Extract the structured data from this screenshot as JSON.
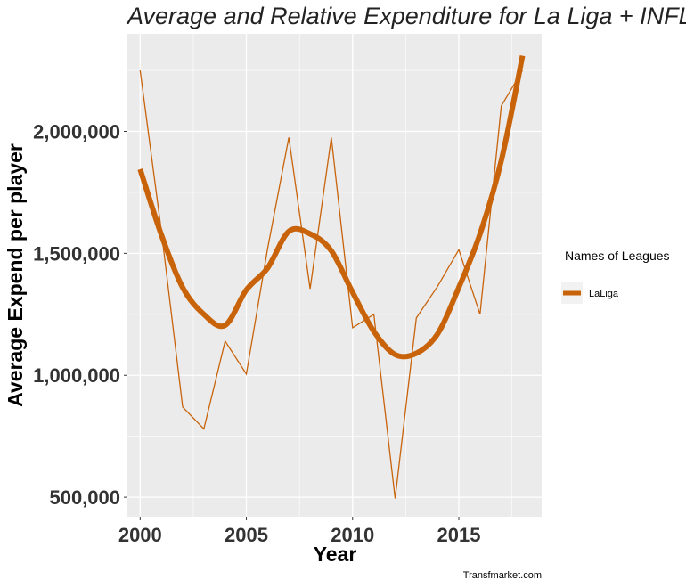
{
  "chart_data": {
    "type": "line",
    "title": "Average and Relative  Expenditure for La Liga + INFL",
    "xlabel": "Year",
    "ylabel": "Average Expend  per player",
    "caption": "Transfmarket.com",
    "x_ticks": [
      2000,
      2005,
      2010,
      2015
    ],
    "x_tick_labels": [
      "2000",
      "2005",
      "2010",
      "2015"
    ],
    "y_ticks": [
      500000,
      1000000,
      1500000,
      2000000
    ],
    "y_tick_labels": [
      "500,000",
      "1,000,000",
      "1,500,000",
      "2,000,000"
    ],
    "xlim": [
      1999.4,
      2018.9
    ],
    "ylim": [
      420000,
      2400000
    ],
    "grid": true,
    "legend": {
      "title": "Names of Leagues",
      "position": "right",
      "entries": [
        "LaLiga"
      ]
    },
    "colors": {
      "series": "#c8630a",
      "panel": "#ebebeb",
      "grid": "#ffffff"
    },
    "x": [
      2000,
      2001,
      2002,
      2003,
      2004,
      2005,
      2006,
      2007,
      2008,
      2009,
      2010,
      2011,
      2012,
      2013,
      2014,
      2015,
      2016,
      2017,
      2018
    ],
    "series": [
      {
        "name": "LaLiga",
        "style": "thin-line",
        "values": [
          2250000,
          1590000,
          870000,
          780000,
          1140000,
          1005000,
          1520000,
          1975000,
          1355000,
          1975000,
          1195000,
          1250000,
          495000,
          1235000,
          1365000,
          1515000,
          1250000,
          2105000,
          2250000
        ]
      },
      {
        "name": "LaLiga",
        "style": "smooth",
        "values": [
          1845000,
          1575000,
          1360000,
          1250000,
          1205000,
          1350000,
          1440000,
          1590000,
          1580000,
          1510000,
          1340000,
          1180000,
          1085000,
          1090000,
          1170000,
          1360000,
          1580000,
          1880000,
          2310000
        ]
      }
    ]
  }
}
